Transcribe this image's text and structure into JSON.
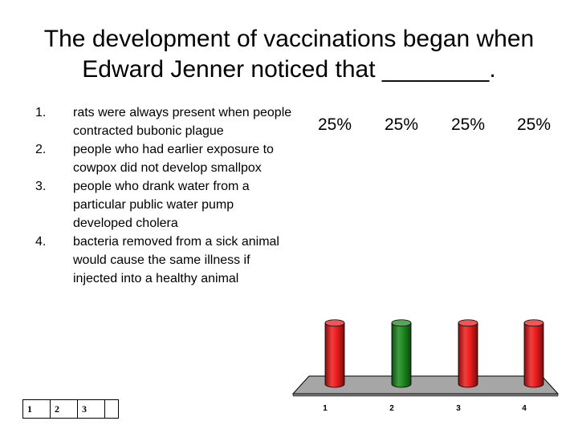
{
  "slide": {
    "title": "The development of vaccinations began when Edward Jenner noticed that ________.",
    "answers": [
      {
        "number": "1.",
        "text": "rats were always present when people contracted bubonic plague"
      },
      {
        "number": "2.",
        "text": "people who had earlier exposure to cowpox did not develop smallpox"
      },
      {
        "number": "3.",
        "text": "people who drank water from a particular public water pump developed cholera"
      },
      {
        "number": "4.",
        "text": "bacteria removed from a sick animal would cause the same illness if injected into a healthy animal"
      }
    ],
    "countdown": [
      "1",
      "2",
      "3"
    ]
  },
  "chart_data": {
    "type": "bar",
    "style": "3d-cylinder",
    "categories": [
      "1",
      "2",
      "3",
      "4"
    ],
    "values": [
      25,
      25,
      25,
      25
    ],
    "value_labels": [
      "25%",
      "25%",
      "25%",
      "25%"
    ],
    "bar_colors": [
      "#ee1c1c",
      "#1d8a1d",
      "#ee1c1c",
      "#ee1c1c"
    ],
    "floor_color": "#a6a6a6",
    "ylim": [
      0,
      100
    ],
    "grid": false,
    "legend": "none"
  }
}
